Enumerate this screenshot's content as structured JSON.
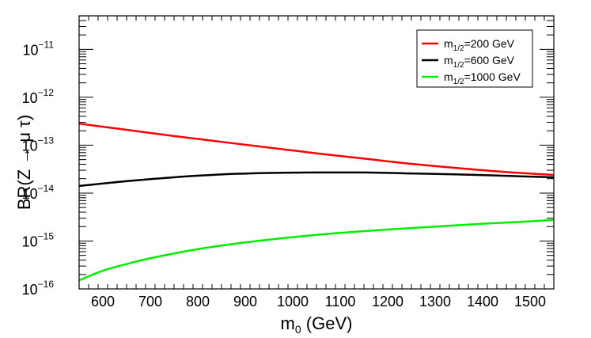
{
  "chart_data": {
    "type": "line",
    "xlabel_main": "m",
    "xlabel_sub": "0",
    "xlabel_unit": " (GeV)",
    "ylabel": "BR(Z → μ τ)",
    "xlim": [
      550,
      1550
    ],
    "ylim_log10": [
      -16,
      -10.3
    ],
    "x_ticks": [
      600,
      700,
      800,
      900,
      1000,
      1100,
      1200,
      1300,
      1400,
      1500
    ],
    "y_tick_exponents": [
      "−16",
      "−15",
      "−14",
      "−13",
      "−12",
      "−11"
    ],
    "legend_position": "top-right",
    "series": [
      {
        "name_main": "m",
        "name_sub": "1/2",
        "name_rest": "=200 GeV",
        "color": "#ff0000",
        "x": [
          550,
          650,
          750,
          850,
          950,
          1050,
          1150,
          1250,
          1350,
          1450,
          1550
        ],
        "log10_y": [
          -12.55,
          -12.68,
          -12.81,
          -12.93,
          -13.05,
          -13.17,
          -13.28,
          -13.39,
          -13.48,
          -13.56,
          -13.62
        ]
      },
      {
        "name_main": "m",
        "name_sub": "1/2",
        "name_rest": "=600 GeV",
        "color": "#000000",
        "x": [
          550,
          650,
          750,
          850,
          950,
          1050,
          1150,
          1250,
          1350,
          1450,
          1550
        ],
        "log10_y": [
          -13.85,
          -13.75,
          -13.67,
          -13.61,
          -13.58,
          -13.57,
          -13.57,
          -13.59,
          -13.61,
          -13.64,
          -13.67
        ]
      },
      {
        "name_main": "m",
        "name_sub": "1/2",
        "name_rest": "=1000 GeV",
        "color": "#00ee00",
        "x": [
          550,
          600,
          650,
          700,
          800,
          900,
          1000,
          1100,
          1200,
          1300,
          1400,
          1500,
          1550
        ],
        "log10_y": [
          -15.82,
          -15.62,
          -15.48,
          -15.36,
          -15.17,
          -15.03,
          -14.92,
          -14.83,
          -14.76,
          -14.7,
          -14.64,
          -14.59,
          -14.56
        ]
      }
    ]
  }
}
